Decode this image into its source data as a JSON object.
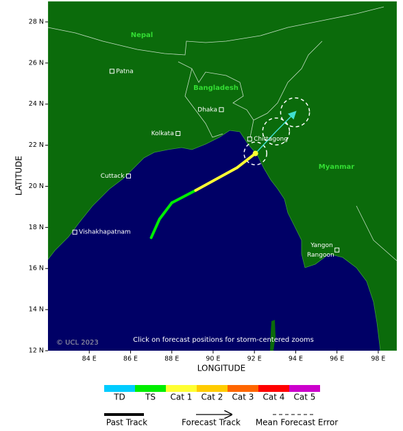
{
  "map": {
    "xlim": [
      82,
      98.9
    ],
    "ylim": [
      12,
      29
    ],
    "xticks": [
      {
        "value": 84,
        "label": "84 E"
      },
      {
        "value": 86,
        "label": "86 E"
      },
      {
        "value": 88,
        "label": "88 E"
      },
      {
        "value": 90,
        "label": "90 E"
      },
      {
        "value": 92,
        "label": "92 E"
      },
      {
        "value": 94,
        "label": "94 E"
      },
      {
        "value": 96,
        "label": "96 E"
      },
      {
        "value": 98,
        "label": "98 E"
      }
    ],
    "yticks": [
      {
        "value": 12,
        "label": "12 N"
      },
      {
        "value": 14,
        "label": "14 N"
      },
      {
        "value": 16,
        "label": "16 N"
      },
      {
        "value": 18,
        "label": "18 N"
      },
      {
        "value": 20,
        "label": "20 N"
      },
      {
        "value": 22,
        "label": "22 N"
      },
      {
        "value": 24,
        "label": "24 N"
      },
      {
        "value": 26,
        "label": "26 N"
      },
      {
        "value": 28,
        "label": "28 N"
      }
    ],
    "x_label": "LONGITUDE",
    "y_label": "LATITUDE",
    "countries": [
      "Nepal",
      "Bangladesh",
      "Myanmar"
    ],
    "cities": [
      {
        "name": "Patna",
        "lon": 85.1,
        "lat": 25.6
      },
      {
        "name": "Dhaka",
        "lon": 90.4,
        "lat": 23.73
      },
      {
        "name": "Kolkata",
        "lon": 88.3,
        "lat": 22.57
      },
      {
        "name": "Chittagong",
        "lon": 91.77,
        "lat": 22.3
      },
      {
        "name": "Cuttack",
        "lon": 85.9,
        "lat": 20.5
      },
      {
        "name": "Vishakhapatnam",
        "lon": 83.3,
        "lat": 17.77
      },
      {
        "name": "Yangon",
        "alt_name": "Rangoon",
        "lon": 96.0,
        "lat": 16.9
      }
    ],
    "copyright": "© UCL 2023",
    "note": "Click on forecast positions for storm-centered zooms"
  },
  "track": {
    "past": [
      {
        "lon": 87.0,
        "lat": 17.5,
        "category": "TS"
      },
      {
        "lon": 87.4,
        "lat": 18.4,
        "category": "TS"
      },
      {
        "lon": 88.0,
        "lat": 19.2,
        "category": "TS"
      },
      {
        "lon": 89.15,
        "lat": 19.8,
        "category": "Cat 1"
      },
      {
        "lon": 91.15,
        "lat": 20.9,
        "category": "Cat 1"
      },
      {
        "lon": 92.05,
        "lat": 21.6,
        "category": "Cat 1"
      }
    ],
    "forecast": [
      {
        "lon": 92.05,
        "lat": 21.6,
        "error": 0.55
      },
      {
        "lon": 93.05,
        "lat": 22.67,
        "error": 0.65
      },
      {
        "lon": 93.97,
        "lat": 23.6,
        "error": 0.7
      }
    ],
    "forecast_color": "#40e0d0"
  },
  "legend": {
    "categories": [
      {
        "label": "TD",
        "color": "#00ccff"
      },
      {
        "label": "TS",
        "color": "#00ee00"
      },
      {
        "label": "Cat 1",
        "color": "#ffff33"
      },
      {
        "label": "Cat 2",
        "color": "#ffcc00"
      },
      {
        "label": "Cat 3",
        "color": "#ff6600"
      },
      {
        "label": "Cat 4",
        "color": "#ff0000"
      },
      {
        "label": "Cat 5",
        "color": "#cc00cc"
      }
    ],
    "past_track": "Past Track",
    "forecast_track": "Forecast Track",
    "mean_error": "Mean Forecast Error"
  }
}
